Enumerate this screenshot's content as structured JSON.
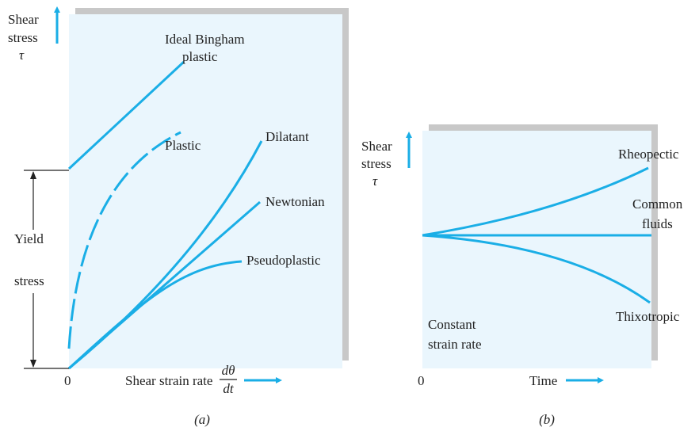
{
  "panel_a": {
    "y_axis_label": [
      "Shear",
      "stress",
      "τ"
    ],
    "curves": {
      "bingham": [
        "Ideal Bingham",
        "plastic"
      ],
      "plastic": "Plastic",
      "dilatant": "Dilatant",
      "newtonian": "Newtonian",
      "pseudoplastic": "Pseudoplastic"
    },
    "yield_label": [
      "Yield",
      "stress"
    ],
    "origin": "0",
    "x_axis_label": "Shear strain rate",
    "x_axis_fraction": {
      "numerator": "dθ",
      "denominator": "dt"
    },
    "caption": "(a)"
  },
  "panel_b": {
    "y_axis_label": [
      "Shear",
      "stress",
      "τ"
    ],
    "curves": {
      "rheopectic": "Rheopectic",
      "common": [
        "Common",
        "fluids"
      ],
      "thixotropic": "Thixotropic"
    },
    "note": [
      "Constant",
      "strain rate"
    ],
    "origin": "0",
    "x_axis_label": "Time",
    "caption": "(b)"
  }
}
